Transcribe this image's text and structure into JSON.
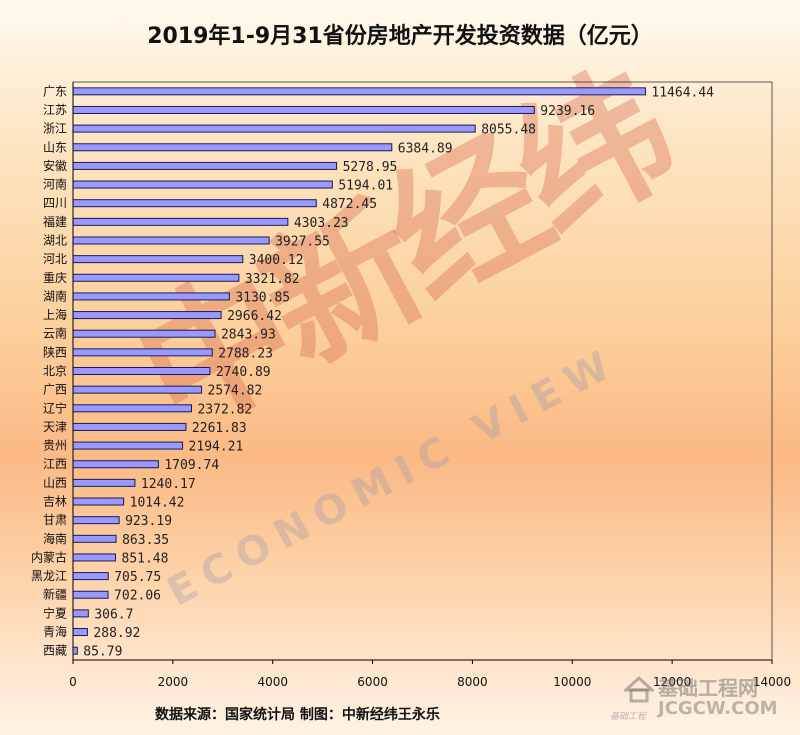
{
  "title": "2019年1-9月31省份房地产开发投资数据（亿元）",
  "source": "数据来源：国家统计局  制图：中新经纬王永乐",
  "watermark": {
    "cn": "中新经纬",
    "en": "ECONOMIC VIEW"
  },
  "logo": {
    "cn": "基础工程网",
    "en": "JCGCW.COM",
    "small": "基础工程"
  },
  "colors": {
    "bar_fill": "#9999ff",
    "bar_stroke": "#1a1a55",
    "axis": "#000000"
  },
  "chart_data": {
    "type": "bar",
    "orientation": "horizontal",
    "title": "2019年1-9月31省份房地产开发投资数据（亿元）",
    "xlim": [
      0,
      14000
    ],
    "xticks": [
      0,
      2000,
      4000,
      6000,
      8000,
      10000,
      12000,
      14000
    ],
    "grid": false,
    "categories": [
      "广东",
      "江苏",
      "浙江",
      "山东",
      "安徽",
      "河南",
      "四川",
      "福建",
      "湖北",
      "河北",
      "重庆",
      "湖南",
      "上海",
      "云南",
      "陕西",
      "北京",
      "广西",
      "辽宁",
      "天津",
      "贵州",
      "江西",
      "山西",
      "吉林",
      "甘肃",
      "海南",
      "内蒙古",
      "黑龙江",
      "新疆",
      "宁夏",
      "青海",
      "西藏"
    ],
    "values": [
      11464.44,
      9239.16,
      8055.48,
      6384.89,
      5278.95,
      5194.01,
      4872.45,
      4303.23,
      3927.55,
      3400.12,
      3321.82,
      3130.85,
      2966.42,
      2843.93,
      2788.23,
      2740.89,
      2574.82,
      2372.82,
      2261.83,
      2194.21,
      1709.74,
      1240.17,
      1014.42,
      923.19,
      863.35,
      851.48,
      705.75,
      702.06,
      306.7,
      288.92,
      85.79
    ],
    "labels": [
      "11464.44",
      "9239.16",
      "8055.48",
      "6384.89",
      "5278.95",
      "5194.01",
      "4872.45",
      "4303.23",
      "3927.55",
      "3400.12",
      "3321.82",
      "3130.85",
      "2966.42",
      "2843.93",
      "2788.23",
      "2740.89",
      "2574.82",
      "2372.82",
      "2261.83",
      "2194.21",
      "1709.74",
      "1240.17",
      "1014.42",
      "923.19",
      "863.35",
      "851.48",
      "705.75",
      "702.06",
      "306.7",
      "288.92",
      "85.79"
    ]
  }
}
